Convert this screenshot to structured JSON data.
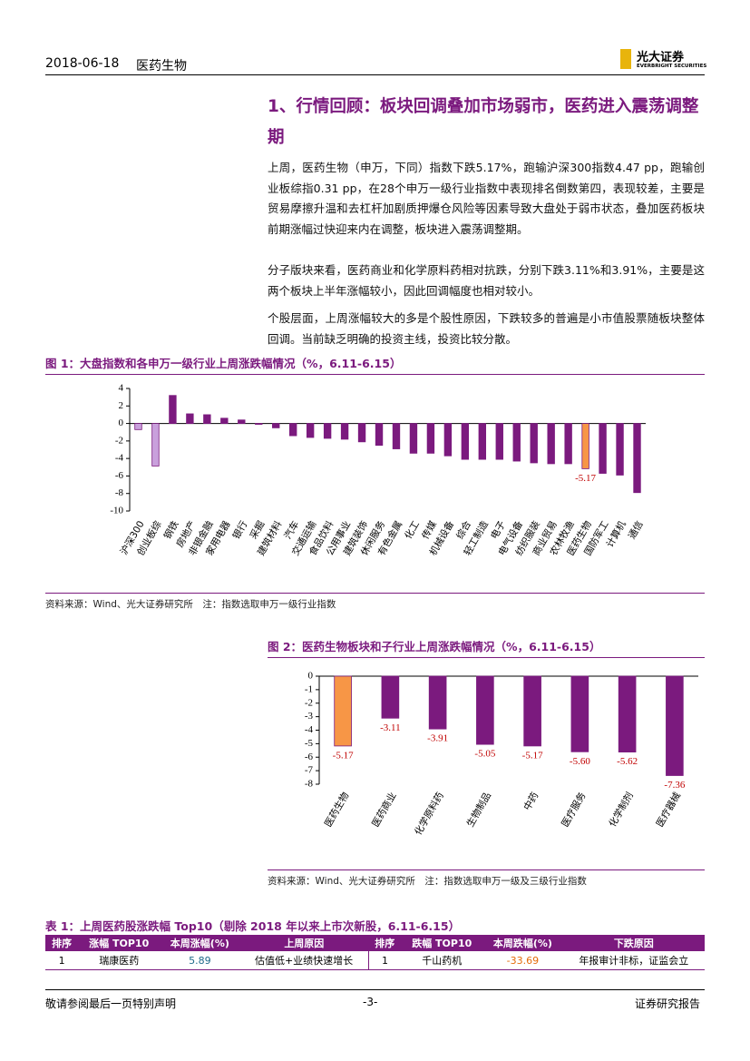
{
  "header": {
    "date": "2018-06-18",
    "sector": "医药生物",
    "logo_cn": "光大证券",
    "logo_en": "EVERBRIGHT SECURITIES"
  },
  "heading": "1、行情回顾：板块回调叠加市场弱市，医药进入震荡调整期",
  "paragraphs": [
    "上周，医药生物（申万，下同）指数下跌5.17%，跑输沪深300指数4.47 pp，跑输创业板综指0.31 pp，在28个申万一级行业指数中表现排名倒数第四，表现较差，主要是贸易摩擦升温和去杠杆加剧质押爆仓风险等因素导致大盘处于弱市状态，叠加医药板块前期涨幅过快迎来内在调整，板块进入震荡调整期。",
    "分子版块来看，医药商业和化学原料药相对抗跌，分别下跌3.11%和3.91%，主要是这两个板块上半年涨幅较小，因此回调幅度也相对较小。",
    "个股层面，上周涨幅较大的多是个股性原因，下跌较多的普遍是小市值股票随板块整体回调。当前缺乏明确的投资主线，投资比较分散。"
  ],
  "chart_data": [
    {
      "type": "bar",
      "caption": "图 1：大盘指数和各申万一级行业上周涨跌幅情况（%，6.11-6.15）",
      "source": "资料来源：Wind、光大证券研究所　注：指数选取申万一级行业指数",
      "categories": [
        "沪深300",
        "创业板综",
        "钢铁",
        "房地产",
        "非银金融",
        "家用电器",
        "银行",
        "采掘",
        "建筑材料",
        "汽车",
        "交通运输",
        "食品饮料",
        "公用事业",
        "建筑装饰",
        "休闲服务",
        "有色金属",
        "化工",
        "传媒",
        "机械设备",
        "综合",
        "轻工制造",
        "电子",
        "电气设备",
        "纺织服装",
        "商业贸易",
        "农林牧渔",
        "医药生物",
        "国防军工",
        "计算机",
        "通信"
      ],
      "values": [
        -0.7,
        -4.86,
        3.2,
        1.1,
        1.0,
        0.6,
        0.4,
        -0.1,
        -0.5,
        -1.4,
        -1.6,
        -1.7,
        -1.8,
        -2.1,
        -2.5,
        -2.9,
        -3.4,
        -3.4,
        -3.7,
        -4.1,
        -4.1,
        -4.1,
        -4.3,
        -4.5,
        -4.6,
        -4.6,
        -5.17,
        -5.7,
        -5.9,
        -7.9
      ],
      "value_labels": [
        null,
        null,
        null,
        null,
        null,
        null,
        null,
        null,
        null,
        null,
        null,
        null,
        null,
        null,
        null,
        null,
        null,
        null,
        null,
        null,
        null,
        null,
        null,
        null,
        null,
        null,
        "-5.17",
        null,
        null,
        null
      ],
      "color": "#7b1a7e",
      "colors": [
        "#c9a0dc",
        "#c9a0dc",
        "#7b1a7e",
        "#7b1a7e",
        "#7b1a7e",
        "#7b1a7e",
        "#7b1a7e",
        "#7b1a7e",
        "#7b1a7e",
        "#7b1a7e",
        "#7b1a7e",
        "#7b1a7e",
        "#7b1a7e",
        "#7b1a7e",
        "#7b1a7e",
        "#7b1a7e",
        "#7b1a7e",
        "#7b1a7e",
        "#7b1a7e",
        "#7b1a7e",
        "#7b1a7e",
        "#7b1a7e",
        "#7b1a7e",
        "#7b1a7e",
        "#7b1a7e",
        "#7b1a7e",
        "#f79646",
        "#7b1a7e",
        "#7b1a7e",
        "#7b1a7e"
      ],
      "ylim": [
        -10,
        4
      ],
      "yticks": [
        -10,
        -8,
        -6,
        -4,
        -2,
        0,
        2,
        4
      ]
    },
    {
      "type": "bar",
      "caption": "图 2：医药生物板块和子行业上周涨跌幅情况（%，6.11-6.15）",
      "source": "资料来源：Wind、光大证券研究所　注：指数选取申万一级及三级行业指数",
      "categories": [
        "医药生物",
        "医药商业",
        "化学原料药",
        "生物制品",
        "中药",
        "医疗服务",
        "化学制剂",
        "医疗器械"
      ],
      "values": [
        -5.17,
        -3.11,
        -3.91,
        -5.05,
        -5.17,
        -5.6,
        -5.62,
        -7.36
      ],
      "value_labels": [
        "-5.17",
        "-3.11",
        "-3.91",
        "-5.05",
        "-5.17",
        "-5.60",
        "-5.62",
        "-7.36"
      ],
      "color": "#7b1a7e",
      "colors": [
        "#f79646",
        "#7b1a7e",
        "#7b1a7e",
        "#7b1a7e",
        "#7b1a7e",
        "#7b1a7e",
        "#7b1a7e",
        "#7b1a7e"
      ],
      "ylim": [
        -8,
        0
      ],
      "yticks": [
        -8,
        -7,
        -6,
        -5,
        -4,
        -3,
        -2,
        -1,
        0
      ]
    }
  ],
  "table": {
    "caption": "表 1：上周医药股涨跌幅 Top10（剔除 2018 年以来上市次新股，6.11-6.15）",
    "columns": [
      "排序",
      "涨幅 TOP10",
      "本周涨幅(%)",
      "上周原因",
      "排序",
      "跌幅 TOP10",
      "本周跌幅(%)",
      "下跌原因"
    ],
    "rows": [
      [
        1,
        "瑞康医药",
        5.89,
        "估值低+业绩快速增长",
        1,
        "千山药机",
        -33.69,
        "年报审计非标，证监会立"
      ]
    ]
  },
  "footer": {
    "left": "敬请参阅最后一页特别声明",
    "page": "-3-",
    "right": "证券研究报告"
  }
}
